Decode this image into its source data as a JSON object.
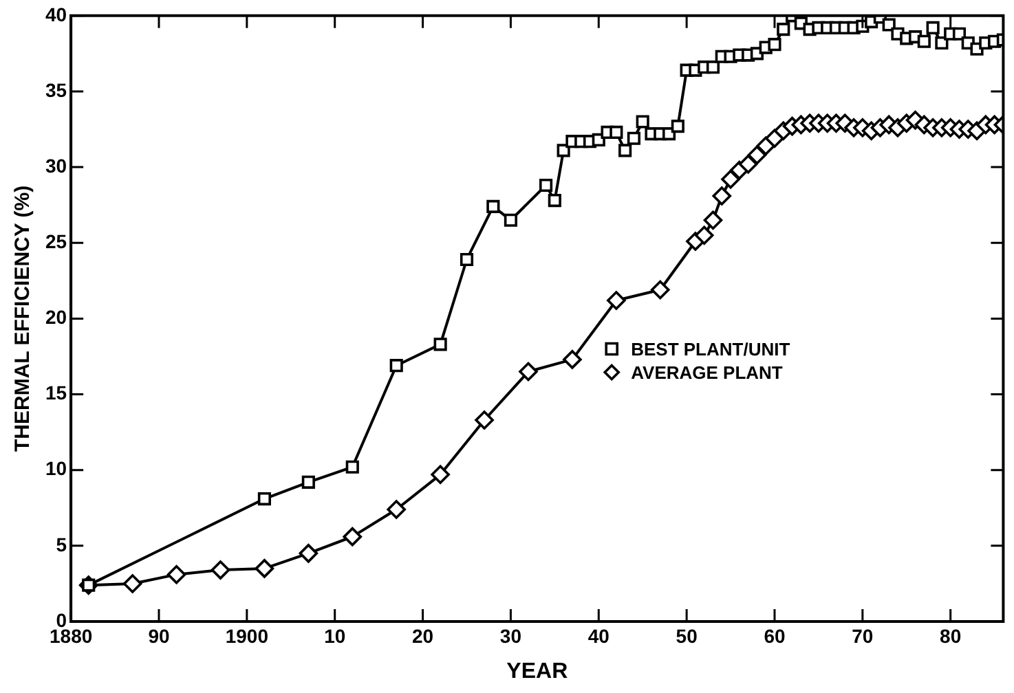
{
  "chart_data": {
    "type": "line",
    "xlabel": "YEAR",
    "ylabel": "THERMAL EFFICIENCY (%)",
    "xlim": [
      1880,
      1986
    ],
    "xticks": [
      {
        "value": 1880,
        "label": "1880"
      },
      {
        "value": 1890,
        "label": "90"
      },
      {
        "value": 1900,
        "label": "1900"
      },
      {
        "value": 1910,
        "label": "10"
      },
      {
        "value": 1920,
        "label": "20"
      },
      {
        "value": 1930,
        "label": "30"
      },
      {
        "value": 1940,
        "label": "40"
      },
      {
        "value": 1950,
        "label": "50"
      },
      {
        "value": 1960,
        "label": "60"
      },
      {
        "value": 1970,
        "label": "70"
      },
      {
        "value": 1980,
        "label": "80"
      }
    ],
    "ylim": [
      0,
      40
    ],
    "yticks": [
      0,
      5,
      10,
      15,
      20,
      25,
      30,
      35,
      40
    ],
    "legend": "right",
    "line_style": "solid",
    "series": [
      {
        "name": "BEST PLANT/UNIT",
        "color": "#000000",
        "marker": "square",
        "x": [
          1882,
          1902,
          1907,
          1912,
          1917,
          1922,
          1925,
          1928,
          1930,
          1934,
          1935,
          1936,
          1937,
          1938,
          1939,
          1940,
          1941,
          1942,
          1943,
          1944,
          1945,
          1946,
          1947,
          1948,
          1949,
          1950,
          1951,
          1952,
          1953,
          1954,
          1955,
          1956,
          1957,
          1958,
          1959,
          1960,
          1961,
          1962,
          1963,
          1964,
          1965,
          1966,
          1967,
          1968,
          1969,
          1970,
          1971,
          1972,
          1973,
          1974,
          1975,
          1976,
          1977,
          1978,
          1979,
          1980,
          1981,
          1982,
          1983,
          1984,
          1985,
          1986
        ],
        "values": [
          2.4,
          8.1,
          9.2,
          10.2,
          16.9,
          18.3,
          23.9,
          27.4,
          26.5,
          28.8,
          27.8,
          31.1,
          31.7,
          31.7,
          31.7,
          31.8,
          32.3,
          32.3,
          31.1,
          31.9,
          33.0,
          32.2,
          32.2,
          32.2,
          32.7,
          36.4,
          36.4,
          36.6,
          36.6,
          37.3,
          37.3,
          37.4,
          37.4,
          37.5,
          37.9,
          38.1,
          39.1,
          40.0,
          39.5,
          39.1,
          39.2,
          39.2,
          39.2,
          39.2,
          39.2,
          39.3,
          39.6,
          39.9,
          39.4,
          38.8,
          38.5,
          38.6,
          38.3,
          39.2,
          38.2,
          38.8,
          38.8,
          38.2,
          37.8,
          38.2,
          38.3,
          38.4
        ]
      },
      {
        "name": "AVERAGE PLANT",
        "color": "#000000",
        "marker": "diamond",
        "x": [
          1882,
          1887,
          1892,
          1897,
          1902,
          1907,
          1912,
          1917,
          1922,
          1927,
          1932,
          1937,
          1942,
          1947,
          1951,
          1952,
          1953,
          1954,
          1955,
          1956,
          1957,
          1958,
          1959,
          1960,
          1961,
          1962,
          1963,
          1964,
          1965,
          1966,
          1967,
          1968,
          1969,
          1970,
          1971,
          1972,
          1973,
          1974,
          1975,
          1976,
          1977,
          1978,
          1979,
          1980,
          1981,
          1982,
          1983,
          1984,
          1985,
          1986
        ],
        "values": [
          2.4,
          2.5,
          3.1,
          3.4,
          3.5,
          4.5,
          5.6,
          7.4,
          9.7,
          13.3,
          16.5,
          17.3,
          21.2,
          21.9,
          25.1,
          25.5,
          26.5,
          28.1,
          29.2,
          29.8,
          30.2,
          30.8,
          31.4,
          31.9,
          32.4,
          32.7,
          32.8,
          32.9,
          32.9,
          32.9,
          32.9,
          32.9,
          32.6,
          32.6,
          32.4,
          32.6,
          32.8,
          32.6,
          32.9,
          33.1,
          32.8,
          32.6,
          32.6,
          32.6,
          32.5,
          32.5,
          32.4,
          32.8,
          32.8,
          32.8
        ]
      }
    ]
  }
}
